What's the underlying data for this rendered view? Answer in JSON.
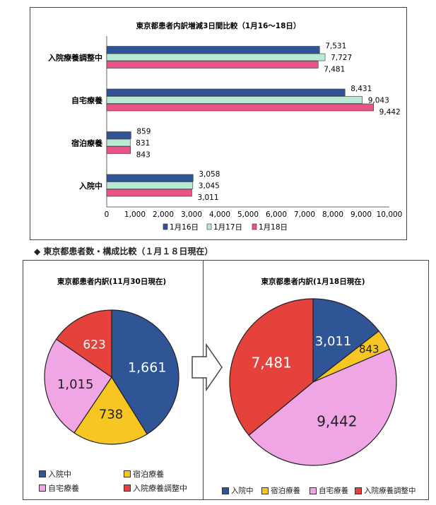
{
  "bar_chart": {
    "title": "東京都患者内訳増減3日間比較（1月16～18日）",
    "legend": [
      "1月16日",
      "1月17日",
      "1月18日"
    ]
  },
  "section_heading": "◆ 東京都患者数・構成比較（１月１８日現在）",
  "pie_left": {
    "title": "東京都患者内訳(11月30日現在)",
    "legend": [
      "入院中",
      "宿泊療養",
      "自宅療養",
      "入院療養調整中"
    ]
  },
  "pie_right": {
    "title": "東京都患者内訳(1月18日現在)",
    "legend": [
      "入院中",
      "宿泊療養",
      "自宅療養",
      "入院療養調整中"
    ]
  },
  "colors": {
    "blue": "#2f5597",
    "green": "#b9ead6",
    "magenta": "#e8548a",
    "yellow": "#f7c623",
    "pink": "#f0a6e4",
    "red": "#e5423b"
  },
  "chart_data": [
    {
      "type": "bar",
      "orientation": "horizontal",
      "title": "東京都患者内訳増減3日間比較（1月16～18日）",
      "categories": [
        "入院療養調整中",
        "自宅療養",
        "宿泊療養",
        "入院中"
      ],
      "series": [
        {
          "name": "1月16日",
          "values": [
            7531,
            8431,
            859,
            3058
          ],
          "color": "#2f5597"
        },
        {
          "name": "1月17日",
          "values": [
            7727,
            9043,
            831,
            3045
          ],
          "color": "#b9ead6"
        },
        {
          "name": "1月18日",
          "values": [
            7481,
            9442,
            843,
            3011
          ],
          "color": "#e8548a"
        }
      ],
      "data_labels": [
        [
          "7,531",
          "8,431",
          "859",
          "3,058"
        ],
        [
          "7,727",
          "9,043",
          "831",
          "3,045"
        ],
        [
          "7,481",
          "9,442",
          "843",
          "3,011"
        ]
      ],
      "xlim": [
        0,
        10000
      ],
      "xticks": [
        "0",
        "1,000",
        "2,000",
        "3,000",
        "4,000",
        "5,000",
        "6,000",
        "7,000",
        "8,000",
        "9,000",
        "10,000"
      ],
      "legend_position": "bottom"
    },
    {
      "type": "pie",
      "title": "東京都患者内訳(11月30日現在)",
      "labels": [
        "入院中",
        "宿泊療養",
        "自宅療養",
        "入院療養調整中"
      ],
      "values": [
        1661,
        738,
        1015,
        623
      ],
      "value_labels": [
        "1,661",
        "738",
        "1,015",
        "623"
      ],
      "colors": [
        "#2f5597",
        "#f7c623",
        "#f0a6e4",
        "#e5423b"
      ],
      "legend_position": "bottom"
    },
    {
      "type": "pie",
      "title": "東京都患者内訳(1月18日現在)",
      "labels": [
        "入院中",
        "宿泊療養",
        "自宅療養",
        "入院療養調整中"
      ],
      "values": [
        3011,
        843,
        9442,
        7481
      ],
      "value_labels": [
        "3,011",
        "843",
        "9,442",
        "7,481"
      ],
      "colors": [
        "#2f5597",
        "#f7c623",
        "#f0a6e4",
        "#e5423b"
      ],
      "legend_position": "bottom"
    }
  ]
}
